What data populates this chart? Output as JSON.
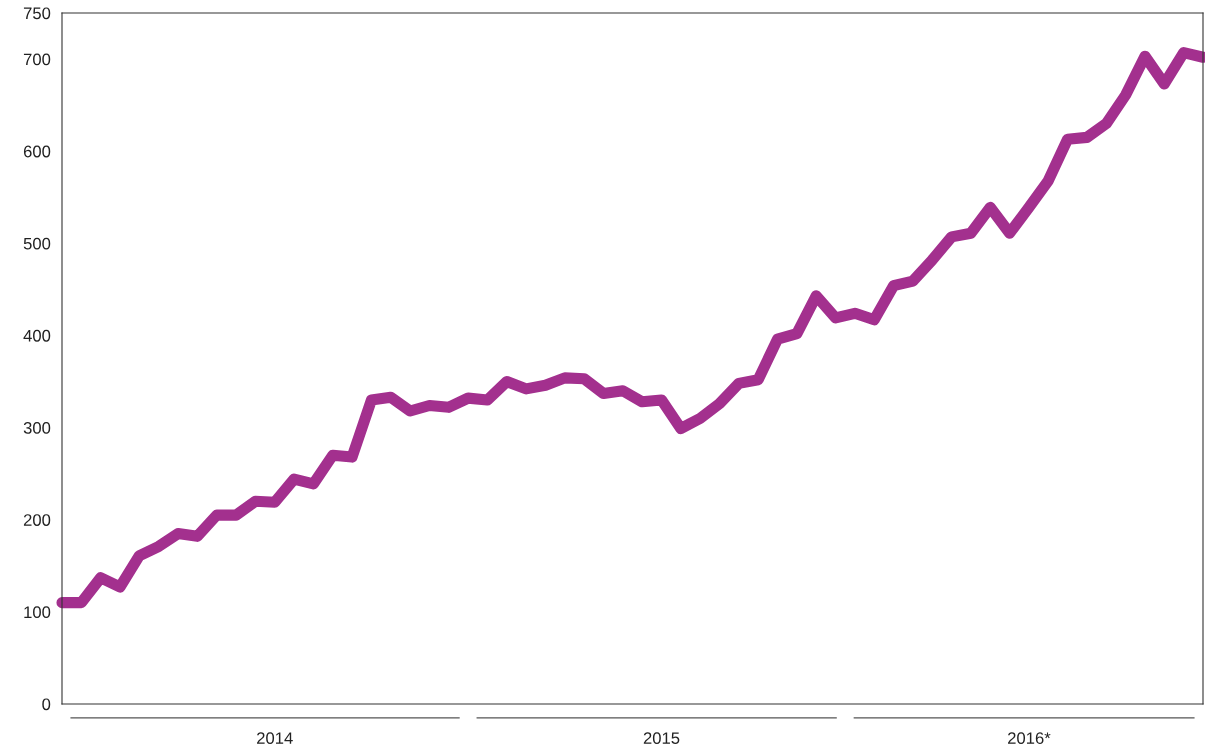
{
  "chart_data": {
    "type": "line",
    "categories": [
      null,
      null,
      null,
      null,
      null,
      null,
      null,
      null,
      null,
      null,
      null,
      "2014",
      null,
      null,
      null,
      null,
      null,
      null,
      null,
      null,
      null,
      null,
      null,
      null,
      null,
      null,
      null,
      null,
      null,
      null,
      null,
      "2015",
      null,
      null,
      null,
      null,
      null,
      null,
      null,
      null,
      null,
      null,
      null,
      null,
      null,
      null,
      null,
      null,
      null,
      null,
      "2016*",
      null,
      null,
      null,
      null,
      null,
      null,
      null,
      null,
      null
    ],
    "series": [
      {
        "color": "#a3308e",
        "values": [
          110,
          110,
          137,
          127,
          161,
          171,
          185,
          182,
          205,
          205,
          220,
          219,
          244,
          239,
          270,
          268,
          330,
          333,
          318,
          324,
          322,
          332,
          330,
          350,
          342,
          346,
          354,
          353,
          337,
          340,
          328,
          330,
          299,
          310,
          326,
          348,
          352,
          396,
          402,
          443,
          419,
          424,
          417,
          454,
          459,
          482,
          507,
          511,
          539,
          511,
          539,
          568,
          613,
          615,
          630,
          661,
          703,
          673,
          707,
          702
        ]
      }
    ],
    "ylim": [
      0,
      750
    ],
    "yticks": [
      0,
      100,
      200,
      300,
      400,
      500,
      600,
      700,
      750
    ],
    "grid": false,
    "legend": false,
    "marker": "none",
    "line_style": "solid"
  }
}
